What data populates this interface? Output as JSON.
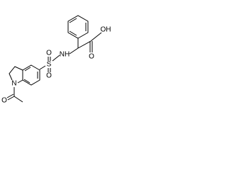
{
  "atoms": {
    "hydroxyl": "OH",
    "carbonyl_acid": "O",
    "amine": "NH",
    "sulfur": "S",
    "sulfonyl_o1": "O",
    "sulfonyl_o2": "O",
    "ring_nitrogen": "N",
    "acetyl_o": "O"
  }
}
